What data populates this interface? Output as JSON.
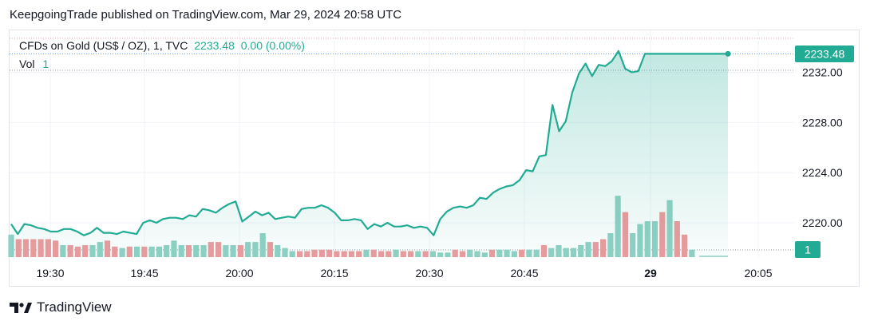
{
  "header": {
    "publisher_line": "KeepgoingTrade published on TradingView.com, Mar 29, 2024 20:58 UTC"
  },
  "legend": {
    "symbol": "CFDs on Gold (US$ / OZ), 1, TVC",
    "last_price": "2233.48",
    "change": "0.00 (0.00%)",
    "volume_label": "Vol",
    "volume_value": "1"
  },
  "footer": {
    "brand": "TradingView",
    "logo_icon": "tradingview-logo-icon"
  },
  "colors": {
    "line": "#22ab94",
    "area_top": "#22ab94",
    "volume_up": "#8fd1c4",
    "volume_down": "#ee9a9d",
    "price_badge": "#22ab94",
    "grid": "#f0f3fa",
    "dotted_price": "#5b9cf6",
    "dotted_prev": "#f7a1a6"
  },
  "chart_data": {
    "type": "area",
    "title": "CFDs on Gold (US$ / OZ), 1, TVC",
    "y_ticks": [
      2220,
      2224,
      2228,
      2232
    ],
    "y_tick_labels": [
      "2220.00",
      "2224.00",
      "2228.00",
      "2232.00"
    ],
    "ylim": [
      2217.3,
      2233.9
    ],
    "x_ticks": [
      {
        "t": 19.5,
        "label": "19:30"
      },
      {
        "t": 19.75,
        "label": "19:45"
      },
      {
        "t": 20.0,
        "label": "20:00"
      },
      {
        "t": 20.25,
        "label": "20:15"
      },
      {
        "t": 20.5,
        "label": "20:30"
      },
      {
        "t": 20.75,
        "label": "20:45"
      },
      {
        "t": 21.0,
        "label": "29"
      },
      {
        "t": 21.25,
        "label": "20:05"
      }
    ],
    "xlim_minutes_from_start": [
      0,
      97
    ],
    "last_price_label": "2233.48",
    "last_volume_label": "1",
    "series": [
      {
        "name": "Price",
        "points": [
          [
            0,
            2219.9
          ],
          [
            1,
            2219.1
          ],
          [
            2,
            2219.9
          ],
          [
            3,
            2219.8
          ],
          [
            4,
            2219.6
          ],
          [
            5,
            2219.5
          ],
          [
            6,
            2219.3
          ],
          [
            7,
            2219.3
          ],
          [
            8,
            2219.5
          ],
          [
            9,
            2219.5
          ],
          [
            10,
            2219.3
          ],
          [
            11,
            2219.0
          ],
          [
            12,
            2219.2
          ],
          [
            13,
            2219.6
          ],
          [
            14,
            2219.2
          ],
          [
            15,
            2219.2
          ],
          [
            16,
            2219.1
          ],
          [
            17,
            2219.3
          ],
          [
            18,
            2219.2
          ],
          [
            19,
            2219.1
          ],
          [
            20,
            2220.0
          ],
          [
            21,
            2220.2
          ],
          [
            22,
            2220.0
          ],
          [
            23,
            2220.3
          ],
          [
            24,
            2220.4
          ],
          [
            25,
            2220.4
          ],
          [
            26,
            2220.3
          ],
          [
            27,
            2220.6
          ],
          [
            28,
            2220.5
          ],
          [
            29,
            2221.1
          ],
          [
            30,
            2221.0
          ],
          [
            31,
            2220.8
          ],
          [
            32,
            2221.2
          ],
          [
            33,
            2221.5
          ],
          [
            34,
            2221.7
          ],
          [
            35,
            2220.1
          ],
          [
            36,
            2220.5
          ],
          [
            37,
            2220.9
          ],
          [
            38,
            2220.6
          ],
          [
            39,
            2220.8
          ],
          [
            40,
            2220.3
          ],
          [
            41,
            2220.4
          ],
          [
            42,
            2220.5
          ],
          [
            43,
            2220.4
          ],
          [
            44,
            2221.1
          ],
          [
            45,
            2221.2
          ],
          [
            46,
            2221.2
          ],
          [
            47,
            2221.4
          ],
          [
            48,
            2221.2
          ],
          [
            49,
            2220.8
          ],
          [
            50,
            2220.2
          ],
          [
            51,
            2220.2
          ],
          [
            52,
            2220.3
          ],
          [
            53,
            2220.2
          ],
          [
            54,
            2219.5
          ],
          [
            55,
            2219.9
          ],
          [
            56,
            2219.7
          ],
          [
            57,
            2220.0
          ],
          [
            58,
            2219.7
          ],
          [
            59,
            2219.7
          ],
          [
            60,
            2219.8
          ],
          [
            61,
            2219.6
          ],
          [
            62,
            2219.7
          ],
          [
            63,
            2219.6
          ],
          [
            64,
            2219.0
          ],
          [
            65,
            2220.3
          ],
          [
            66,
            2220.9
          ],
          [
            67,
            2221.2
          ],
          [
            68,
            2221.3
          ],
          [
            69,
            2221.2
          ],
          [
            70,
            2221.4
          ],
          [
            71,
            2222.0
          ],
          [
            72,
            2221.9
          ],
          [
            73,
            2222.4
          ],
          [
            74,
            2222.7
          ],
          [
            75,
            2222.9
          ],
          [
            76,
            2223.0
          ],
          [
            77,
            2223.4
          ],
          [
            78,
            2224.2
          ],
          [
            79,
            2224.1
          ],
          [
            80,
            2225.3
          ],
          [
            81,
            2225.4
          ],
          [
            82,
            2229.4
          ],
          [
            83,
            2227.3
          ],
          [
            84,
            2228.1
          ],
          [
            85,
            2230.4
          ],
          [
            86,
            2231.9
          ],
          [
            87,
            2232.7
          ],
          [
            88,
            2231.7
          ],
          [
            89,
            2232.6
          ],
          [
            90,
            2232.5
          ],
          [
            91,
            2232.9
          ],
          [
            92,
            2233.7
          ],
          [
            93,
            2232.3
          ],
          [
            94,
            2232.0
          ],
          [
            95,
            2232.1
          ],
          [
            96,
            2232.2
          ],
          [
            97,
            2233.48
          ]
        ]
      },
      {
        "name": "Vol",
        "bars": [
          {
            "x": 0,
            "h": 9.4,
            "d": 0
          },
          {
            "x": 1,
            "h": 7.5,
            "d": 1
          },
          {
            "x": 2,
            "h": 7.5,
            "d": 1
          },
          {
            "x": 3,
            "h": 7.5,
            "d": 1
          },
          {
            "x": 4,
            "h": 7.5,
            "d": 1
          },
          {
            "x": 5,
            "h": 7.5,
            "d": 1
          },
          {
            "x": 6,
            "h": 6.9,
            "d": 1
          },
          {
            "x": 7,
            "h": 5.0,
            "d": 0
          },
          {
            "x": 8,
            "h": 5.0,
            "d": 1
          },
          {
            "x": 9,
            "h": 4.4,
            "d": 1
          },
          {
            "x": 10,
            "h": 5.0,
            "d": 1
          },
          {
            "x": 11,
            "h": 5.0,
            "d": 0
          },
          {
            "x": 12,
            "h": 6.3,
            "d": 0
          },
          {
            "x": 13,
            "h": 6.9,
            "d": 1
          },
          {
            "x": 14,
            "h": 4.4,
            "d": 1
          },
          {
            "x": 15,
            "h": 3.8,
            "d": 0
          },
          {
            "x": 16,
            "h": 4.4,
            "d": 1
          },
          {
            "x": 17,
            "h": 4.4,
            "d": 0
          },
          {
            "x": 18,
            "h": 4.4,
            "d": 1
          },
          {
            "x": 19,
            "h": 4.4,
            "d": 0
          },
          {
            "x": 20,
            "h": 4.4,
            "d": 0
          },
          {
            "x": 21,
            "h": 5.0,
            "d": 0
          },
          {
            "x": 22,
            "h": 6.9,
            "d": 0
          },
          {
            "x": 23,
            "h": 5.0,
            "d": 0
          },
          {
            "x": 24,
            "h": 5.0,
            "d": 1
          },
          {
            "x": 25,
            "h": 5.0,
            "d": 0
          },
          {
            "x": 26,
            "h": 5.0,
            "d": 0
          },
          {
            "x": 27,
            "h": 6.3,
            "d": 1
          },
          {
            "x": 28,
            "h": 6.3,
            "d": 1
          },
          {
            "x": 29,
            "h": 5.0,
            "d": 0
          },
          {
            "x": 30,
            "h": 5.0,
            "d": 0
          },
          {
            "x": 31,
            "h": 5.0,
            "d": 1
          },
          {
            "x": 32,
            "h": 6.3,
            "d": 0
          },
          {
            "x": 33,
            "h": 6.3,
            "d": 0
          },
          {
            "x": 34,
            "h": 10.0,
            "d": 0
          },
          {
            "x": 35,
            "h": 6.3,
            "d": 1
          },
          {
            "x": 36,
            "h": 5.0,
            "d": 0
          },
          {
            "x": 37,
            "h": 3.8,
            "d": 0
          },
          {
            "x": 38,
            "h": 2.5,
            "d": 0
          },
          {
            "x": 39,
            "h": 2.5,
            "d": 1
          },
          {
            "x": 40,
            "h": 2.5,
            "d": 1
          },
          {
            "x": 41,
            "h": 3.1,
            "d": 1
          },
          {
            "x": 42,
            "h": 3.1,
            "d": 1
          },
          {
            "x": 43,
            "h": 3.1,
            "d": 1
          },
          {
            "x": 44,
            "h": 2.5,
            "d": 1
          },
          {
            "x": 45,
            "h": 2.5,
            "d": 1
          },
          {
            "x": 46,
            "h": 2.5,
            "d": 1
          },
          {
            "x": 47,
            "h": 2.5,
            "d": 1
          },
          {
            "x": 48,
            "h": 3.1,
            "d": 0
          },
          {
            "x": 49,
            "h": 3.1,
            "d": 1
          },
          {
            "x": 50,
            "h": 2.5,
            "d": 1
          },
          {
            "x": 51,
            "h": 2.5,
            "d": 1
          },
          {
            "x": 52,
            "h": 3.1,
            "d": 0
          },
          {
            "x": 53,
            "h": 2.5,
            "d": 1
          },
          {
            "x": 54,
            "h": 2.5,
            "d": 1
          },
          {
            "x": 55,
            "h": 2.5,
            "d": 0
          },
          {
            "x": 56,
            "h": 2.5,
            "d": 1
          },
          {
            "x": 57,
            "h": 2.5,
            "d": 0
          },
          {
            "x": 58,
            "h": 1.9,
            "d": 0
          },
          {
            "x": 59,
            "h": 1.9,
            "d": 0
          },
          {
            "x": 60,
            "h": 3.1,
            "d": 1
          },
          {
            "x": 61,
            "h": 2.5,
            "d": 1
          },
          {
            "x": 62,
            "h": 3.1,
            "d": 0
          },
          {
            "x": 63,
            "h": 2.5,
            "d": 0
          },
          {
            "x": 64,
            "h": 1.9,
            "d": 0
          },
          {
            "x": 65,
            "h": 3.1,
            "d": 1
          },
          {
            "x": 66,
            "h": 3.1,
            "d": 0
          },
          {
            "x": 67,
            "h": 3.1,
            "d": 0
          },
          {
            "x": 68,
            "h": 2.5,
            "d": 0
          },
          {
            "x": 69,
            "h": 3.1,
            "d": 1
          },
          {
            "x": 70,
            "h": 3.1,
            "d": 0
          },
          {
            "x": 71,
            "h": 3.1,
            "d": 0
          },
          {
            "x": 72,
            "h": 5.0,
            "d": 1
          },
          {
            "x": 73,
            "h": 3.8,
            "d": 0
          },
          {
            "x": 74,
            "h": 5.0,
            "d": 0
          },
          {
            "x": 75,
            "h": 3.8,
            "d": 0
          },
          {
            "x": 76,
            "h": 3.8,
            "d": 0
          },
          {
            "x": 77,
            "h": 5.0,
            "d": 0
          },
          {
            "x": 78,
            "h": 6.3,
            "d": 0
          },
          {
            "x": 79,
            "h": 6.3,
            "d": 1
          },
          {
            "x": 80,
            "h": 7.5,
            "d": 1
          },
          {
            "x": 81,
            "h": 10.0,
            "d": 0
          },
          {
            "x": 82,
            "h": 25.6,
            "d": 0
          },
          {
            "x": 83,
            "h": 18.8,
            "d": 1
          },
          {
            "x": 84,
            "h": 10.0,
            "d": 0
          },
          {
            "x": 85,
            "h": 13.8,
            "d": 0
          },
          {
            "x": 86,
            "h": 15.0,
            "d": 0
          },
          {
            "x": 87,
            "h": 15.0,
            "d": 0
          },
          {
            "x": 88,
            "h": 18.8,
            "d": 1
          },
          {
            "x": 89,
            "h": 23.8,
            "d": 0
          },
          {
            "x": 90,
            "h": 15.0,
            "d": 1
          },
          {
            "x": 91,
            "h": 9.4,
            "d": 1
          },
          {
            "x": 92,
            "h": 3.1,
            "d": 0
          }
        ]
      }
    ]
  }
}
